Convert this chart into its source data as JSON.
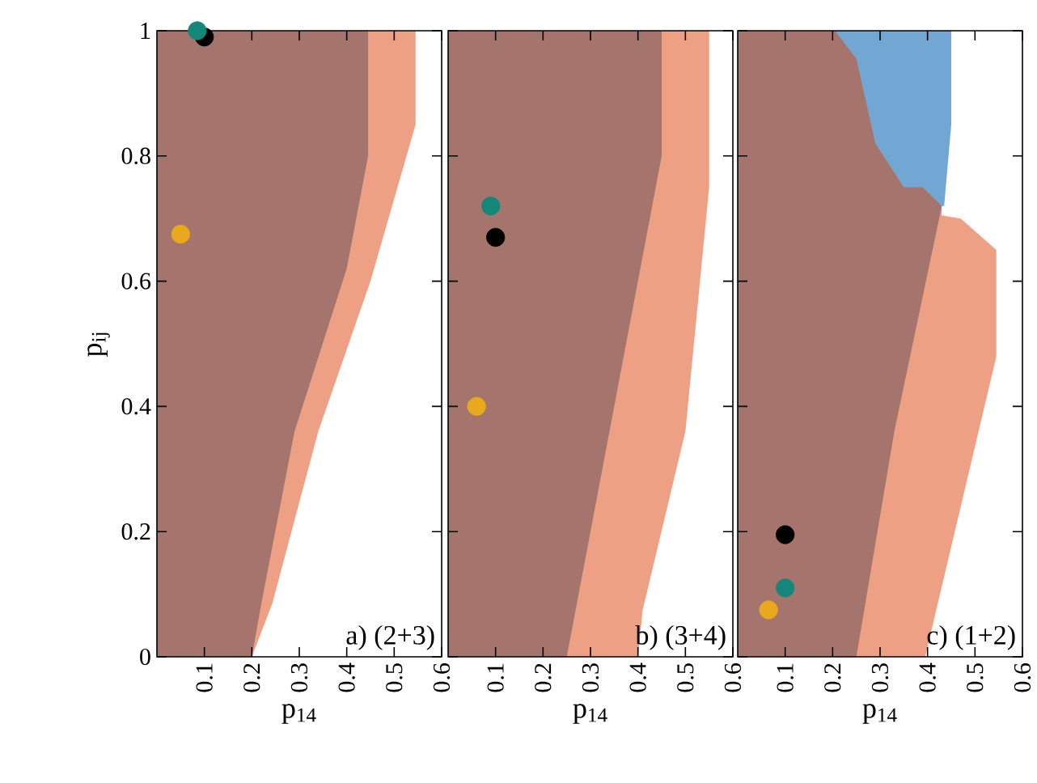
{
  "chart_data": [
    {
      "type": "area",
      "xlabel": "p$_{14}$",
      "ylabel": "p$_{ij}$",
      "xlim": [
        0,
        0.6
      ],
      "ylim": [
        0,
        1
      ],
      "xticks": [
        0.1,
        0.2,
        0.3,
        0.4,
        0.5,
        0.6
      ],
      "yticks": [
        0,
        0.2,
        0.4,
        0.6,
        0.8,
        1
      ],
      "annotations": [
        "a) (2+3)"
      ],
      "series": [
        {
          "color": "#eda084",
          "x": [
            0,
            0.2,
            0.243,
            0.34,
            0.45,
            0.545,
            0.545,
            0
          ],
          "values": [
            0,
            0,
            0.085,
            0.36,
            0.6,
            0.85,
            1,
            1
          ]
        },
        {
          "color": "#a5756d",
          "x": [
            0,
            0.2,
            0.22,
            0.29,
            0.4,
            0.445,
            0.445,
            0
          ],
          "values": [
            0,
            0,
            0.085,
            0.36,
            0.62,
            0.8,
            1,
            1
          ]
        },
        {
          "type": "scatter",
          "marker": "circle",
          "color": "#000000",
          "x": [
            0.1
          ],
          "values": [
            0.99
          ]
        },
        {
          "type": "scatter",
          "marker": "circle",
          "color": "#14877a",
          "x": [
            0.085
          ],
          "values": [
            1.0
          ]
        },
        {
          "type": "scatter",
          "marker": "circle",
          "color": "#e9a91d",
          "x": [
            0.05
          ],
          "values": [
            0.675
          ]
        }
      ]
    },
    {
      "type": "area",
      "xlabel": "p$_{14}$",
      "xlim": [
        0,
        0.6
      ],
      "ylim": [
        0,
        1
      ],
      "xticks": [
        0.1,
        0.2,
        0.3,
        0.4,
        0.5,
        0.6
      ],
      "yticks": [
        0,
        0.2,
        0.4,
        0.6,
        0.8,
        1
      ],
      "tick_labels": "x",
      "annotations": [
        "b) (3+4)"
      ],
      "series": [
        {
          "color": "#eda084",
          "x": [
            0,
            0.4,
            0.41,
            0.5,
            0.55,
            0.55,
            0
          ],
          "values": [
            0,
            0,
            0.075,
            0.36,
            0.75,
            1,
            1
          ]
        },
        {
          "color": "#a5756d",
          "x": [
            0,
            0.25,
            0.34,
            0.45,
            0.45,
            0
          ],
          "values": [
            0,
            0,
            0.36,
            0.8,
            1,
            1
          ]
        },
        {
          "type": "scatter",
          "marker": "circle",
          "color": "#14877a",
          "x": [
            0.09
          ],
          "values": [
            0.72
          ]
        },
        {
          "type": "scatter",
          "marker": "circle",
          "color": "#000000",
          "x": [
            0.1
          ],
          "values": [
            0.67
          ]
        },
        {
          "type": "scatter",
          "marker": "circle",
          "color": "#e9a91d",
          "x": [
            0.06
          ],
          "values": [
            0.4
          ]
        }
      ]
    },
    {
      "type": "area",
      "xlabel": "p$_{14}$",
      "xlim": [
        0,
        0.6
      ],
      "ylim": [
        0,
        1
      ],
      "xticks": [
        0.1,
        0.2,
        0.3,
        0.4,
        0.5,
        0.6
      ],
      "yticks": [
        0,
        0.2,
        0.4,
        0.6,
        0.8,
        1
      ],
      "tick_labels": "x",
      "annotations": [
        "c) (1+2)"
      ],
      "series": [
        {
          "color": "#eda084",
          "x": [
            0,
            0.395,
            0.545,
            0.545,
            0.47,
            0.43,
            0.43,
            0
          ],
          "values": [
            0,
            0,
            0.48,
            0.65,
            0.7,
            0.705,
            0.72,
            0.72
          ]
        },
        {
          "color": "#72a7d3",
          "x": [
            0,
            0.435,
            0.45,
            0.45,
            0
          ],
          "values": [
            0.72,
            0.72,
            0.85,
            1,
            1
          ]
        },
        {
          "color": "#a5756d",
          "x": [
            0,
            0.25,
            0.33,
            0.43,
            0.39,
            0.35,
            0.29,
            0.25,
            0.205,
            0
          ],
          "values": [
            0,
            0,
            0.36,
            0.72,
            0.75,
            0.75,
            0.82,
            0.955,
            1,
            1
          ]
        },
        {
          "type": "scatter",
          "marker": "circle",
          "color": "#000000",
          "x": [
            0.1
          ],
          "values": [
            0.195
          ]
        },
        {
          "type": "scatter",
          "marker": "circle",
          "color": "#14877a",
          "x": [
            0.1
          ],
          "values": [
            0.11
          ]
        },
        {
          "type": "scatter",
          "marker": "circle",
          "color": "#e9a91d",
          "x": [
            0.065
          ],
          "values": [
            0.075
          ]
        }
      ]
    }
  ]
}
